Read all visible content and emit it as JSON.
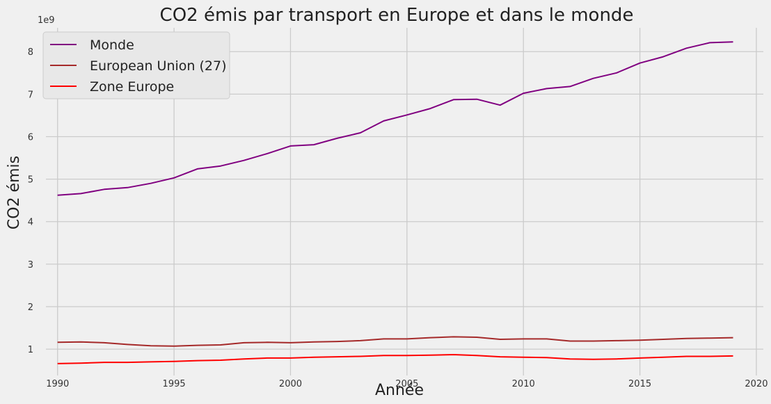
{
  "chart_data": {
    "type": "line",
    "title": "CO2 émis par transport en Europe et dans le monde",
    "xlabel": "Année",
    "ylabel": "CO2 émis",
    "y_scale_label": "1e9",
    "xlim": [
      1989.5,
      2020.3
    ],
    "ylim": [
      0.38,
      8.56
    ],
    "xticks": [
      1990,
      1995,
      2000,
      2005,
      2010,
      2015,
      2020
    ],
    "yticks": [
      1,
      2,
      3,
      4,
      5,
      6,
      7,
      8
    ],
    "grid": true,
    "legend_position": "top-left",
    "x": [
      1990,
      1991,
      1992,
      1993,
      1994,
      1995,
      1996,
      1997,
      1998,
      1999,
      2000,
      2001,
      2002,
      2003,
      2004,
      2005,
      2006,
      2007,
      2008,
      2009,
      2010,
      2011,
      2012,
      2013,
      2014,
      2015,
      2016,
      2017,
      2018,
      2019
    ],
    "series": [
      {
        "name": "Monde",
        "color": "#800080",
        "values": [
          4.62,
          4.66,
          4.76,
          4.8,
          4.9,
          5.03,
          5.24,
          5.31,
          5.44,
          5.6,
          5.78,
          5.81,
          5.96,
          6.09,
          6.37,
          6.51,
          6.66,
          6.87,
          6.88,
          6.74,
          7.02,
          7.13,
          7.18,
          7.37,
          7.5,
          7.73,
          7.88,
          8.08,
          8.21,
          8.23
        ]
      },
      {
        "name": "European Union (27)",
        "color": "#a52a2a",
        "values": [
          1.16,
          1.17,
          1.15,
          1.11,
          1.08,
          1.07,
          1.09,
          1.1,
          1.15,
          1.16,
          1.15,
          1.17,
          1.18,
          1.2,
          1.24,
          1.24,
          1.27,
          1.29,
          1.28,
          1.23,
          1.24,
          1.24,
          1.19,
          1.19,
          1.2,
          1.21,
          1.23,
          1.25,
          1.26,
          1.27
        ]
      },
      {
        "name": "Zone Europe",
        "color": "#ff0000",
        "values": [
          0.66,
          0.67,
          0.69,
          0.69,
          0.7,
          0.71,
          0.73,
          0.74,
          0.77,
          0.79,
          0.79,
          0.81,
          0.82,
          0.83,
          0.85,
          0.85,
          0.86,
          0.87,
          0.85,
          0.82,
          0.81,
          0.8,
          0.77,
          0.76,
          0.77,
          0.79,
          0.81,
          0.83,
          0.83,
          0.84
        ]
      }
    ]
  }
}
